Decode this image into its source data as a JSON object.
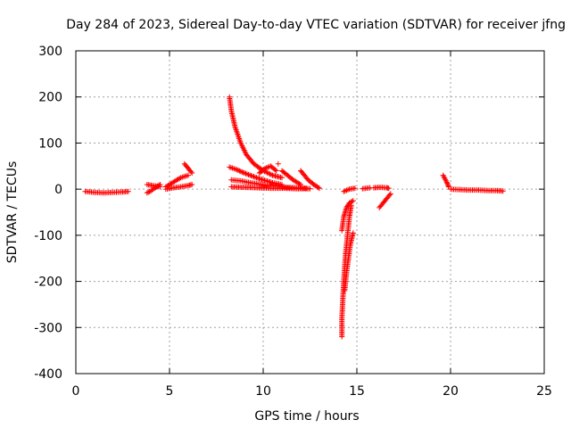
{
  "chart_data": {
    "type": "scatter",
    "title": "Day 284 of 2023, Sidereal Day-to-day VTEC variation (SDTVAR) for receiver jfng",
    "xlabel": "GPS time / hours",
    "ylabel": "SDTVAR / TECUs",
    "xlim": [
      0,
      25
    ],
    "ylim": [
      -400,
      300
    ],
    "xticks": [
      0,
      5,
      10,
      15,
      20,
      25
    ],
    "yticks": [
      -400,
      -300,
      -200,
      -100,
      0,
      100,
      200,
      300
    ],
    "grid": true,
    "marker": "+",
    "color": "#ff0000",
    "segments": [
      {
        "x": [
          0.5,
          1.0,
          1.5,
          2.0,
          2.5,
          2.8
        ],
        "y": [
          -5,
          -7,
          -8,
          -7,
          -6,
          -5
        ]
      },
      {
        "x": [
          3.8,
          4.0,
          4.2,
          4.5
        ],
        "y": [
          -8,
          -4,
          2,
          10
        ]
      },
      {
        "x": [
          3.8,
          4.1,
          4.5
        ],
        "y": [
          10,
          8,
          5
        ]
      },
      {
        "x": [
          4.8,
          5.2,
          5.6,
          6.0,
          6.2
        ],
        "y": [
          0,
          3,
          5,
          8,
          10
        ]
      },
      {
        "x": [
          4.8,
          5.2,
          5.6,
          6.0
        ],
        "y": [
          5,
          15,
          25,
          30
        ]
      },
      {
        "x": [
          5.8,
          6.0,
          6.2
        ],
        "y": [
          55,
          45,
          35
        ]
      },
      {
        "x": [
          8.2,
          8.3,
          8.5,
          8.8,
          9.1,
          9.5,
          10.0,
          10.5,
          11.0
        ],
        "y": [
          200,
          170,
          135,
          100,
          75,
          55,
          40,
          30,
          25
        ]
      },
      {
        "x": [
          8.2,
          8.6,
          9.0,
          9.5,
          10.0,
          10.5,
          11.0
        ],
        "y": [
          48,
          42,
          35,
          27,
          20,
          14,
          10
        ]
      },
      {
        "x": [
          9.8,
          10.1,
          10.4,
          10.7
        ],
        "y": [
          35,
          45,
          50,
          40
        ]
      },
      {
        "x": [
          8.3,
          8.8,
          9.3,
          9.8,
          10.3,
          10.8,
          11.3,
          11.8,
          12.3
        ],
        "y": [
          20,
          18,
          14,
          11,
          8,
          6,
          4,
          3,
          2
        ]
      },
      {
        "x": [
          8.3,
          9.0,
          9.7,
          10.4,
          11.1,
          11.8,
          12.5
        ],
        "y": [
          5,
          4,
          3,
          2,
          2,
          1,
          1
        ]
      },
      {
        "x": [
          10.8
        ],
        "y": [
          55
        ]
      },
      {
        "x": [
          11.0,
          11.3,
          11.6,
          12.0
        ],
        "y": [
          40,
          30,
          20,
          10
        ]
      },
      {
        "x": [
          12.0,
          12.2,
          12.4,
          12.7,
          13.0
        ],
        "y": [
          40,
          30,
          20,
          10,
          2
        ]
      },
      {
        "x": [
          14.2,
          14.2,
          14.25,
          14.3,
          14.35,
          14.4,
          14.5,
          14.6,
          14.7
        ],
        "y": [
          -320,
          -280,
          -240,
          -200,
          -170,
          -140,
          -100,
          -60,
          -35
        ]
      },
      {
        "x": [
          14.2,
          14.3,
          14.45,
          14.6,
          14.8
        ],
        "y": [
          -90,
          -60,
          -40,
          -30,
          -25
        ]
      },
      {
        "x": [
          14.35,
          14.45,
          14.55,
          14.65,
          14.8
        ],
        "y": [
          -220,
          -180,
          -150,
          -120,
          -95
        ]
      },
      {
        "x": [
          14.3,
          14.6,
          14.9
        ],
        "y": [
          -5,
          0,
          2
        ]
      },
      {
        "x": [
          15.3,
          15.7
        ],
        "y": [
          1,
          3
        ]
      },
      {
        "x": [
          15.9,
          16.2,
          16.6,
          16.7
        ],
        "y": [
          3,
          4,
          3,
          2
        ]
      },
      {
        "x": [
          16.2,
          16.4,
          16.6,
          16.8
        ],
        "y": [
          -40,
          -30,
          -20,
          -10
        ]
      },
      {
        "x": [
          19.6,
          19.8,
          19.9
        ],
        "y": [
          30,
          15,
          5
        ]
      },
      {
        "x": [
          20.0,
          20.5,
          21.0,
          21.5,
          22.0,
          22.5,
          22.8
        ],
        "y": [
          0,
          -1,
          -2,
          -2,
          -3,
          -3,
          -4
        ]
      }
    ]
  }
}
